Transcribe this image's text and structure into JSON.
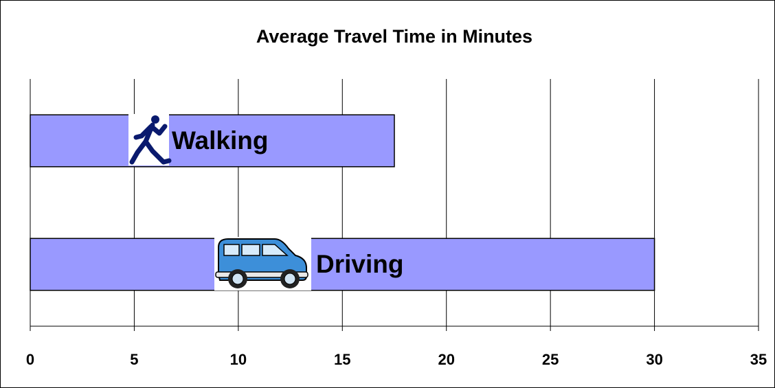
{
  "chart_data": {
    "type": "barh",
    "title": "Average Travel Time in Minutes",
    "categories": [
      "Walking",
      "Driving"
    ],
    "values": [
      17.5,
      30
    ],
    "color": "#9999ff",
    "xlim": [
      0,
      35
    ],
    "xticks": [
      0,
      5,
      10,
      15,
      20,
      25,
      30,
      35
    ],
    "grid": true
  }
}
